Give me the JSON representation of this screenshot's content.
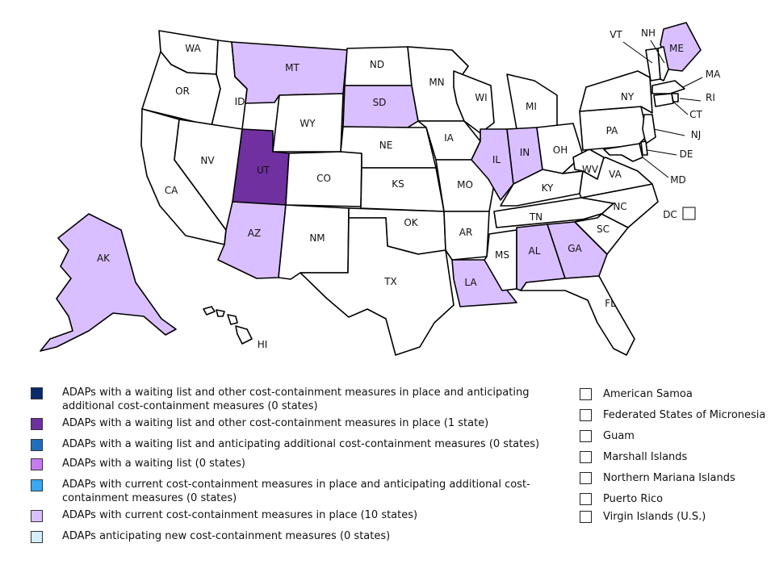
{
  "colors": {
    "waiting_and_other_and_anticipating": "#0b2a6b",
    "waiting_and_other": "#7030a0",
    "waiting_and_anticipating": "#1f6fbf",
    "waiting_only": "#c77bf0",
    "current_and_anticipating": "#3aa8f5",
    "current_measures": "#d9bfff",
    "anticipating_new": "#d4eefc",
    "none": "#ffffff"
  },
  "states": [
    {
      "code": "WA",
      "fill": "none"
    },
    {
      "code": "OR",
      "fill": "none"
    },
    {
      "code": "CA",
      "fill": "none"
    },
    {
      "code": "ID",
      "fill": "none"
    },
    {
      "code": "NV",
      "fill": "none"
    },
    {
      "code": "MT",
      "fill": "current_measures"
    },
    {
      "code": "WY",
      "fill": "none"
    },
    {
      "code": "UT",
      "fill": "waiting_and_other"
    },
    {
      "code": "AZ",
      "fill": "current_measures"
    },
    {
      "code": "CO",
      "fill": "none"
    },
    {
      "code": "NM",
      "fill": "none"
    },
    {
      "code": "ND",
      "fill": "none"
    },
    {
      "code": "SD",
      "fill": "current_measures"
    },
    {
      "code": "NE",
      "fill": "none"
    },
    {
      "code": "KS",
      "fill": "none"
    },
    {
      "code": "OK",
      "fill": "none"
    },
    {
      "code": "TX",
      "fill": "none"
    },
    {
      "code": "MN",
      "fill": "none"
    },
    {
      "code": "IA",
      "fill": "none"
    },
    {
      "code": "MO",
      "fill": "none"
    },
    {
      "code": "AR",
      "fill": "none"
    },
    {
      "code": "LA",
      "fill": "current_measures"
    },
    {
      "code": "WI",
      "fill": "none"
    },
    {
      "code": "IL",
      "fill": "current_measures"
    },
    {
      "code": "MI",
      "fill": "none"
    },
    {
      "code": "IN",
      "fill": "current_measures"
    },
    {
      "code": "OH",
      "fill": "none"
    },
    {
      "code": "KY",
      "fill": "none"
    },
    {
      "code": "TN",
      "fill": "none"
    },
    {
      "code": "MS",
      "fill": "none"
    },
    {
      "code": "AL",
      "fill": "current_measures"
    },
    {
      "code": "GA",
      "fill": "current_measures"
    },
    {
      "code": "FL",
      "fill": "none"
    },
    {
      "code": "SC",
      "fill": "none"
    },
    {
      "code": "NC",
      "fill": "none"
    },
    {
      "code": "VA",
      "fill": "none"
    },
    {
      "code": "WV",
      "fill": "none"
    },
    {
      "code": "PA",
      "fill": "none"
    },
    {
      "code": "NY",
      "fill": "none"
    },
    {
      "code": "ME",
      "fill": "current_measures"
    },
    {
      "code": "VT",
      "fill": "none"
    },
    {
      "code": "NH",
      "fill": "none"
    },
    {
      "code": "MA",
      "fill": "none"
    },
    {
      "code": "RI",
      "fill": "none"
    },
    {
      "code": "CT",
      "fill": "none"
    },
    {
      "code": "NJ",
      "fill": "none"
    },
    {
      "code": "DE",
      "fill": "none"
    },
    {
      "code": "MD",
      "fill": "none"
    },
    {
      "code": "DC",
      "fill": "none"
    },
    {
      "code": "AK",
      "fill": "current_measures"
    },
    {
      "code": "HI",
      "fill": "none"
    }
  ],
  "legend": [
    {
      "key": "waiting_and_other_and_anticipating",
      "text": "ADAPs with a waiting list  and other cost-containment measures in place  and anticipating\nadditional cost-containment measures (0 states)"
    },
    {
      "key": "waiting_and_other",
      "text": "ADAPs with a waiting list  and other cost-containment measures in place  (1 state)"
    },
    {
      "key": "waiting_and_anticipating",
      "text": "ADAPs with a waiting list  and anticipating additional cost-containment measures (0 states)"
    },
    {
      "key": "waiting_only",
      "text": "ADAPs with a waiting list  (0 states)"
    },
    {
      "key": "current_and_anticipating",
      "text": "ADAPs with current cost-containment measures in place  and anticipating additional cost-\ncontainment measures (0 states)"
    },
    {
      "key": "current_measures",
      "text": "ADAPs with current cost-containment measures in place  (10 states)"
    },
    {
      "key": "anticipating_new",
      "text": "ADAPs anticipating new cost-containment measures (0 states)"
    }
  ],
  "territories": [
    {
      "label": "American Samoa",
      "fill": "none"
    },
    {
      "label": "Federated States of Micronesia",
      "fill": "none"
    },
    {
      "label": "Guam",
      "fill": "none"
    },
    {
      "label": "Marshall Islands",
      "fill": "none"
    },
    {
      "label": "Northern Mariana Islands",
      "fill": "none"
    },
    {
      "label": "Puerto Rico",
      "fill": "none"
    },
    {
      "label": "Virgin Islands  (U.S.)",
      "fill": "none"
    }
  ]
}
